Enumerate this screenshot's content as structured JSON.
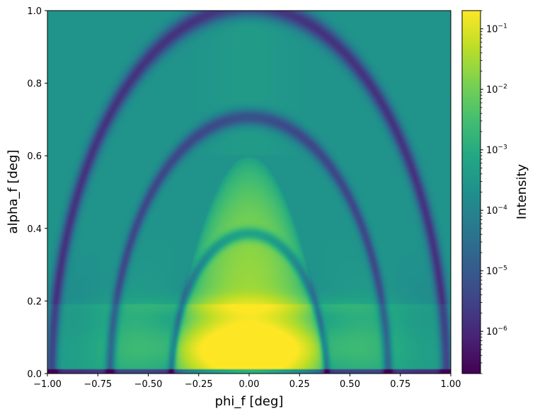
{
  "chart_data": {
    "type": "heatmap",
    "xlabel": "phi_f [deg]",
    "ylabel": "alpha_f [deg]",
    "xlim": [
      -1.0,
      1.0
    ],
    "ylim": [
      0.0,
      1.0
    ],
    "x_ticks": [
      -1.0,
      -0.75,
      -0.5,
      -0.25,
      0.0,
      0.25,
      0.5,
      0.75,
      1.0
    ],
    "x_tick_labels": [
      "−1.00",
      "−0.75",
      "−0.50",
      "−0.25",
      "0.00",
      "0.25",
      "0.50",
      "0.75",
      "1.00"
    ],
    "y_ticks": [
      0.0,
      0.2,
      0.4,
      0.6,
      0.8,
      1.0
    ],
    "y_tick_labels": [
      "0.0",
      "0.2",
      "0.4",
      "0.6",
      "0.8",
      "1.0"
    ],
    "colorbar": {
      "label": "Intensity",
      "scale": "log",
      "colormap": "viridis",
      "range": [
        2e-07,
        0.2
      ],
      "ticks": [
        {
          "value": 1e-06,
          "base": "10",
          "exp": "−6"
        },
        {
          "value": 1e-05,
          "base": "10",
          "exp": "−5"
        },
        {
          "value": 0.0001,
          "base": "10",
          "exp": "−4"
        },
        {
          "value": 0.001,
          "base": "10",
          "exp": "−3"
        },
        {
          "value": 0.01,
          "base": "10",
          "exp": "−2"
        },
        {
          "value": 0.1,
          "base": "10",
          "exp": "−1"
        }
      ]
    },
    "features": {
      "horizontal_band_alpha_f": 0.19,
      "peak_intensity_at": {
        "phi_f": 0.0,
        "alpha_f": 0.07
      },
      "secondary_peak_at": {
        "phi_f": 0.0,
        "alpha_f": 0.19
      }
    }
  }
}
